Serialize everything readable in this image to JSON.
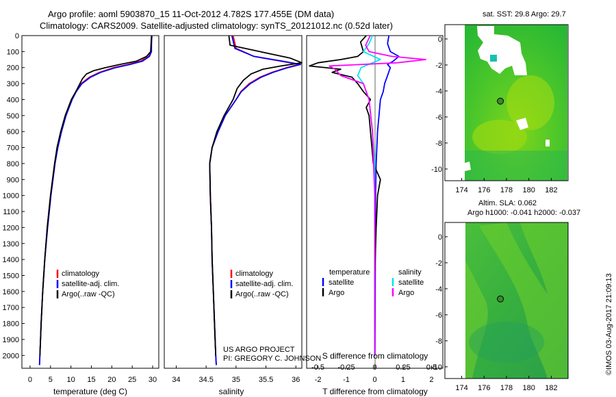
{
  "header": {
    "line1": "Argo profile: aoml 5903870_15 11-Oct-2012 4.782S 177.455E (DM data)",
    "line2": "Climatology: CARS2009. Satellite-adjusted climatology: synTS_20121012.nc (0.52d later)"
  },
  "credit": {
    "project": "US ARGO PROJECT",
    "pi": "PI: GREGORY C. JOHNSON",
    "imos": "©IMOS 03-Aug-2017 21:09:13"
  },
  "colors": {
    "climatology": "#ff0000",
    "satellite": "#0000ff",
    "argo": "#000000",
    "salinity_sat": "#00e5ee",
    "salinity_argo": "#ff00ff"
  },
  "legend_profile": {
    "climatology": "climatology",
    "satellite": "satellite-adj. clim.",
    "argo": "Argo(..raw -QC)"
  },
  "legend_diff": {
    "temperature_title": "temperature",
    "salinity_title": "salinity",
    "satellite": "satellite",
    "argo": "Argo"
  },
  "maps": {
    "sst_title": "sat. SST: 29.8  Argo: 29.7",
    "sla_title1": "Altim. SLA: 0.062",
    "sla_title2": "Argo h1000: -0.041  h2000: -0.037",
    "lon_ticks": [
      174,
      176,
      178,
      180,
      182
    ],
    "lat_ticks": [
      0,
      -2,
      -4,
      -6,
      -8,
      -10
    ],
    "float_position": {
      "lon": 177.455,
      "lat": -4.782
    }
  },
  "chart_data": [
    {
      "type": "line",
      "panel": "temperature",
      "xlabel": "temperature (deg C)",
      "ylabel": "",
      "xlim": [
        -2,
        31.5
      ],
      "ylim": [
        2080,
        0
      ],
      "xticks": [
        0,
        5,
        10,
        15,
        20,
        25,
        30
      ],
      "yticks": [
        0,
        100,
        200,
        300,
        400,
        500,
        600,
        700,
        800,
        900,
        1000,
        1100,
        1200,
        1300,
        1400,
        1500,
        1600,
        1700,
        1800,
        1900,
        2000
      ],
      "series": [
        {
          "name": "climatology",
          "color": "#ff0000",
          "depth": [
            0,
            50,
            100,
            130,
            160,
            180,
            200,
            230,
            260,
            300,
            350,
            400,
            500,
            600,
            700,
            800,
            1000,
            1200,
            1400,
            1600,
            1800,
            2000,
            2060
          ],
          "values": [
            29.8,
            29.7,
            29.6,
            29.0,
            27.0,
            24.0,
            20.5,
            17.0,
            14.5,
            12.5,
            11.2,
            10.2,
            8.7,
            7.6,
            6.7,
            6.0,
            5.0,
            4.2,
            3.6,
            3.1,
            2.7,
            2.4,
            2.3
          ]
        },
        {
          "name": "satellite-adj. clim.",
          "color": "#0000ff",
          "depth": [
            0,
            50,
            100,
            130,
            160,
            180,
            200,
            230,
            260,
            300,
            350,
            400,
            500,
            600,
            700,
            800,
            1000,
            1200,
            1400,
            1600,
            1800,
            2000,
            2060
          ],
          "values": [
            29.8,
            29.7,
            29.7,
            29.2,
            27.5,
            24.5,
            21.0,
            17.3,
            14.8,
            12.7,
            11.3,
            10.3,
            8.8,
            7.7,
            6.8,
            6.1,
            5.1,
            4.3,
            3.6,
            3.1,
            2.7,
            2.4,
            2.3
          ]
        },
        {
          "name": "Argo(..raw -QC)",
          "color": "#000000",
          "depth": [
            0,
            50,
            100,
            130,
            160,
            180,
            200,
            220,
            240,
            270,
            300,
            350,
            400,
            500,
            600,
            700,
            800,
            1000,
            1200,
            1400,
            1600,
            1800,
            2000
          ],
          "values": [
            29.7,
            29.6,
            29.5,
            28.5,
            26.0,
            22.0,
            18.5,
            15.5,
            13.8,
            12.8,
            12.2,
            11.2,
            10.1,
            8.6,
            7.5,
            6.6,
            6.0,
            5.0,
            4.2,
            3.6,
            3.1,
            2.7,
            2.4
          ]
        }
      ]
    },
    {
      "type": "line",
      "panel": "salinity",
      "xlabel": "salinity",
      "xlim": [
        33.8,
        36.1
      ],
      "ylim": [
        2080,
        0
      ],
      "xticks": [
        34,
        34.5,
        35,
        35.5,
        36
      ],
      "series": [
        {
          "name": "climatology",
          "color": "#ff0000",
          "depth": [
            0,
            80,
            130,
            160,
            180,
            200,
            230,
            260,
            300,
            350,
            400,
            500,
            600,
            700,
            800,
            1000,
            1200,
            1400,
            1600,
            1800,
            2000,
            2060
          ],
          "values": [
            34.95,
            35.0,
            35.3,
            35.75,
            36.05,
            35.85,
            35.6,
            35.4,
            35.22,
            35.08,
            35.0,
            34.82,
            34.7,
            34.6,
            34.56,
            34.57,
            34.59,
            34.6,
            34.62,
            34.64,
            34.66,
            34.67
          ]
        },
        {
          "name": "satellite-adj. clim.",
          "color": "#0000ff",
          "depth": [
            0,
            80,
            130,
            160,
            180,
            200,
            230,
            260,
            300,
            350,
            400,
            500,
            600,
            700,
            800,
            1000,
            1200,
            1400,
            1600,
            1800,
            2000,
            2060
          ],
          "values": [
            34.93,
            34.98,
            35.3,
            35.78,
            36.08,
            35.87,
            35.62,
            35.42,
            35.24,
            35.09,
            35.0,
            34.82,
            34.7,
            34.6,
            34.56,
            34.57,
            34.59,
            34.6,
            34.62,
            34.64,
            34.66,
            34.67
          ]
        },
        {
          "name": "Argo(..raw -QC)",
          "color": "#000000",
          "depth": [
            0,
            60,
            100,
            140,
            170,
            190,
            210,
            240,
            280,
            330,
            400,
            500,
            600,
            700,
            800,
            1000,
            1200,
            1400,
            1600,
            1800,
            2000
          ],
          "values": [
            34.88,
            34.9,
            35.4,
            35.9,
            36.1,
            35.75,
            35.45,
            35.25,
            35.12,
            35.02,
            34.95,
            34.8,
            34.68,
            34.6,
            34.56,
            34.57,
            34.59,
            34.6,
            34.62,
            34.64,
            34.66
          ]
        }
      ]
    },
    {
      "type": "line",
      "panel": "difference",
      "xlabel": "T difference from climatology",
      "xlabel_top": "S difference from climatology",
      "xlim": [
        -2.4,
        2.4
      ],
      "ylim": [
        2080,
        0
      ],
      "xticks": [
        -2,
        -1,
        0,
        1,
        2
      ],
      "xtick_labels": [
        "-2",
        "-1",
        "0",
        "1",
        "2"
      ],
      "sticks": [
        -0.5,
        -0.25,
        0,
        0.25,
        0.5
      ],
      "stick_labels": [
        "-0.5",
        "-0.25",
        "0",
        "0.25",
        "0.5"
      ],
      "series": [
        {
          "name": "temperature satellite",
          "color": "#0000ff",
          "depth": [
            0,
            50,
            100,
            130,
            160,
            180,
            200,
            250,
            300,
            350,
            400,
            500,
            600,
            800,
            1000,
            1500,
            2000
          ],
          "values": [
            0.5,
            0.45,
            0.55,
            0.85,
            0.65,
            0.45,
            0.55,
            0.45,
            0.35,
            0.3,
            0.2,
            0.15,
            0.1,
            0.05,
            0.03,
            0.02,
            0.01
          ]
        },
        {
          "name": "temperature Argo",
          "color": "#000000",
          "depth": [
            0,
            40,
            100,
            130,
            150,
            170,
            190,
            210,
            230,
            260,
            300,
            350,
            400,
            450,
            500,
            600,
            700,
            800,
            900,
            1000,
            1200,
            1500,
            2000
          ],
          "values": [
            -0.3,
            -0.5,
            -0.4,
            -0.6,
            -1.2,
            -2.0,
            -2.3,
            -1.2,
            -1.5,
            -0.8,
            -0.6,
            -0.4,
            -0.15,
            -0.3,
            -0.2,
            -0.15,
            -0.1,
            -0.05,
            0.2,
            0.1,
            0.05,
            0.0,
            0.0
          ]
        },
        {
          "name": "salinity satellite",
          "color": "#00e5ee",
          "depth": [
            0,
            50,
            100,
            150,
            200,
            250,
            300,
            400,
            600,
            800,
            1000,
            1500,
            2000
          ],
          "values": [
            -0.02,
            -0.05,
            -0.1,
            0.05,
            -0.12,
            -0.15,
            -0.1,
            -0.05,
            -0.02,
            0.0,
            0.0,
            0.0,
            0.0
          ]
        },
        {
          "name": "salinity Argo",
          "color": "#ff00ff",
          "depth": [
            0,
            60,
            100,
            130,
            150,
            170,
            190,
            210,
            250,
            300,
            400,
            600,
            1000,
            2000
          ],
          "values": [
            -0.04,
            -0.08,
            -0.05,
            0.15,
            0.45,
            0.2,
            -0.4,
            -0.35,
            -0.3,
            -0.1,
            -0.05,
            -0.02,
            0.0,
            0.0
          ]
        }
      ]
    }
  ]
}
